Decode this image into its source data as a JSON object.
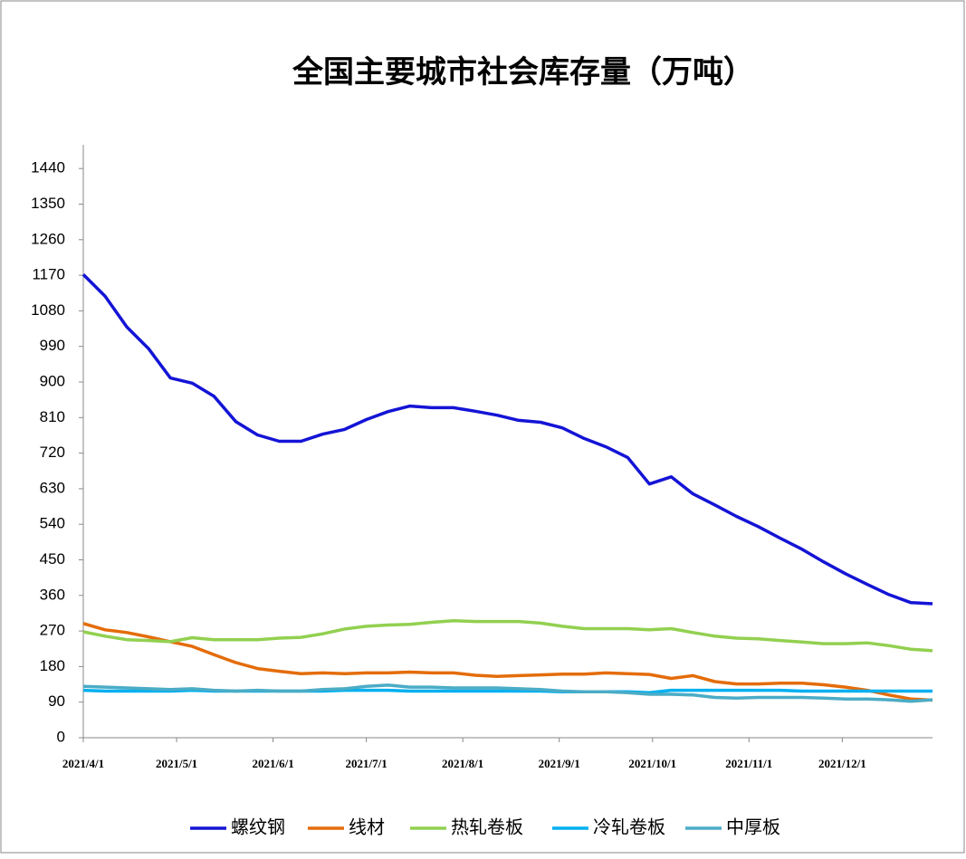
{
  "chart_data": {
    "type": "line",
    "title": "全国主要城市社会库存量（万吨）",
    "x": [
      "2021/4/1",
      "2021/4/8",
      "2021/4/15",
      "2021/4/22",
      "2021/4/29",
      "2021/5/6",
      "2021/5/13",
      "2021/5/20",
      "2021/5/27",
      "2021/6/3",
      "2021/6/10",
      "2021/6/17",
      "2021/6/24",
      "2021/7/1",
      "2021/7/8",
      "2021/7/15",
      "2021/7/22",
      "2021/7/29",
      "2021/8/5",
      "2021/8/12",
      "2021/8/19",
      "2021/8/26",
      "2021/9/2",
      "2021/9/9",
      "2021/9/16",
      "2021/9/23",
      "2021/9/30",
      "2021/10/7",
      "2021/10/14",
      "2021/10/21",
      "2021/10/28",
      "2021/11/4",
      "2021/11/11",
      "2021/11/18",
      "2021/11/25",
      "2021/12/2",
      "2021/12/9",
      "2021/12/16",
      "2021/12/23",
      "2021/12/30"
    ],
    "xticks": [
      "2021/4/1",
      "2021/5/1",
      "2021/6/1",
      "2021/7/1",
      "2021/8/1",
      "2021/9/1",
      "2021/10/1",
      "2021/11/1",
      "2021/12/1"
    ],
    "ylim": [
      0,
      1500
    ],
    "yticks": [
      0,
      90,
      180,
      270,
      360,
      450,
      540,
      630,
      720,
      810,
      900,
      990,
      1080,
      1170,
      1260,
      1350,
      1440
    ],
    "legend": "bottom",
    "series": [
      {
        "name": "螺纹钢",
        "color": "#1414d6",
        "values": [
          1172,
          1117,
          1039,
          984,
          910,
          897,
          864,
          800,
          766,
          750,
          750,
          768,
          780,
          805,
          825,
          839,
          835,
          835,
          826,
          816,
          803,
          798,
          784,
          757,
          736,
          709,
          642,
          660,
          617,
          589,
          560,
          534,
          505,
          477,
          445,
          415,
          388,
          362,
          342,
          339
        ]
      },
      {
        "name": "线材",
        "color": "#e46c0a",
        "values": [
          289,
          273,
          266,
          255,
          243,
          231,
          210,
          190,
          175,
          168,
          162,
          164,
          162,
          164,
          164,
          166,
          164,
          164,
          158,
          155,
          157,
          159,
          161,
          161,
          164,
          162,
          160,
          150,
          157,
          142,
          136,
          136,
          138,
          138,
          134,
          128,
          120,
          108,
          98,
          95
        ]
      },
      {
        "name": "热轧卷板",
        "color": "#92d050",
        "values": [
          268,
          257,
          248,
          246,
          243,
          253,
          248,
          248,
          248,
          252,
          254,
          263,
          275,
          282,
          285,
          287,
          292,
          296,
          294,
          294,
          294,
          290,
          282,
          276,
          276,
          276,
          273,
          276,
          266,
          257,
          252,
          250,
          246,
          242,
          238,
          238,
          240,
          233,
          224,
          220
        ]
      },
      {
        "name": "冷轧卷板",
        "color": "#00b0f0",
        "values": [
          120,
          118,
          118,
          118,
          118,
          120,
          118,
          118,
          118,
          118,
          118,
          118,
          120,
          120,
          120,
          118,
          118,
          118,
          118,
          118,
          118,
          118,
          116,
          116,
          116,
          116,
          114,
          120,
          120,
          120,
          120,
          120,
          120,
          118,
          118,
          118,
          118,
          118,
          118,
          118
        ]
      },
      {
        "name": "中厚板",
        "color": "#4bacc6",
        "values": [
          130,
          128,
          126,
          124,
          122,
          124,
          120,
          118,
          120,
          118,
          118,
          122,
          124,
          130,
          133,
          128,
          128,
          126,
          126,
          126,
          124,
          122,
          118,
          116,
          116,
          114,
          110,
          110,
          108,
          102,
          100,
          102,
          102,
          102,
          100,
          98,
          98,
          96,
          92,
          96
        ]
      }
    ]
  }
}
